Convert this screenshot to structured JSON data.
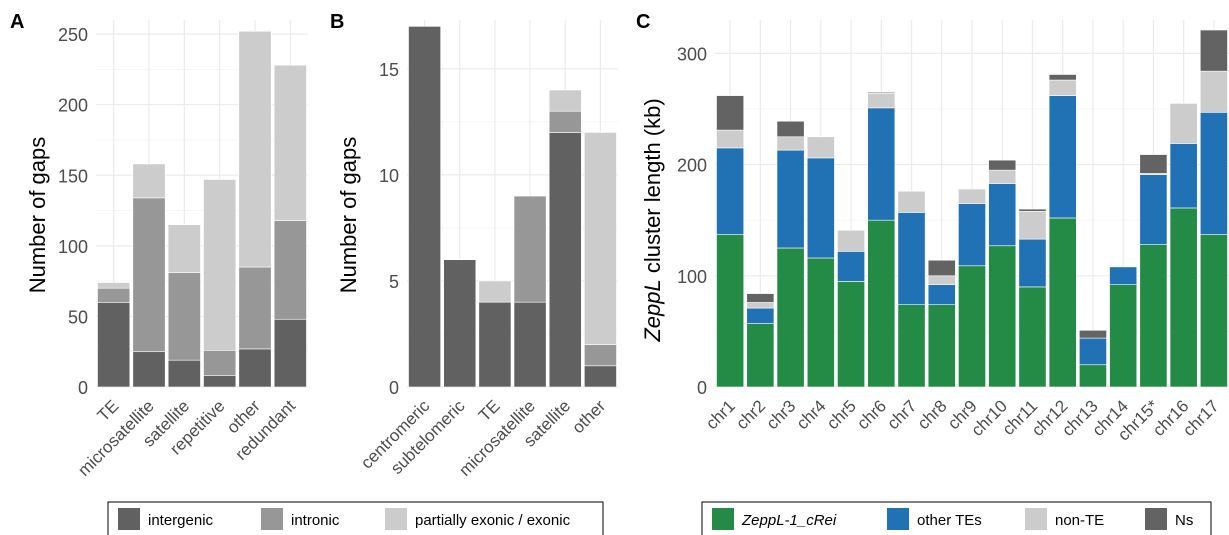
{
  "chart_data": [
    {
      "type": "bar",
      "panel_label": "A",
      "stacked": true,
      "ylabel": "Number of gaps",
      "xlabel": "",
      "ylim": [
        0,
        260
      ],
      "yticks": [
        0,
        50,
        100,
        150,
        200,
        250
      ],
      "categories": [
        "TE",
        "microsatellite",
        "satellite",
        "repetitive",
        "other",
        "redundant"
      ],
      "series": [
        {
          "name": "intergenic",
          "color": "#616161",
          "values": [
            60,
            25,
            19,
            8,
            27,
            48
          ]
        },
        {
          "name": "intronic",
          "color": "#979797",
          "values": [
            10,
            109,
            62,
            18,
            58,
            70
          ]
        },
        {
          "name": "partially exonic / exonic",
          "color": "#cccccc",
          "values": [
            4,
            24,
            34,
            121,
            167,
            110
          ]
        }
      ],
      "grid": true,
      "legend": "bottom"
    },
    {
      "type": "bar",
      "panel_label": "B",
      "stacked": true,
      "ylabel": "Number of gaps",
      "xlabel": "",
      "ylim": [
        0,
        17.3
      ],
      "yticks": [
        0,
        5,
        10,
        15
      ],
      "categories": [
        "centromeric",
        "subtelomeric",
        "TE",
        "microsatellite",
        "satellite",
        "other"
      ],
      "series": [
        {
          "name": "intergenic",
          "color": "#616161",
          "values": [
            17,
            6,
            4,
            4,
            12,
            1
          ]
        },
        {
          "name": "intronic",
          "color": "#979797",
          "values": [
            0,
            0,
            0,
            5,
            1,
            1
          ]
        },
        {
          "name": "partially exonic / exonic",
          "color": "#cccccc",
          "values": [
            0,
            0,
            1,
            0,
            1,
            10
          ]
        }
      ],
      "grid": true,
      "legend": "bottom"
    },
    {
      "type": "bar",
      "panel_label": "C",
      "stacked": true,
      "ylabel_italic": "ZeppL",
      "ylabel_rest": " cluster length (kb)",
      "xlabel": "",
      "ylim": [
        0,
        330
      ],
      "yticks": [
        0,
        100,
        200,
        300
      ],
      "categories": [
        "chr1",
        "chr2",
        "chr3",
        "chr4",
        "chr5",
        "chr6",
        "chr7",
        "chr8",
        "chr9",
        "chr10",
        "chr11",
        "chr12",
        "chr13",
        "chr14",
        "chr15*",
        "chr16",
        "chr17"
      ],
      "series": [
        {
          "name": "ZeppL-1_cRei",
          "italic": true,
          "color": "#238b45",
          "values": [
            137,
            57,
            125,
            116,
            95,
            150,
            74,
            74,
            109,
            127,
            90,
            152,
            20,
            92,
            128,
            161,
            137
          ]
        },
        {
          "name": "other TEs",
          "italic": false,
          "color": "#2171b5",
          "values": [
            78,
            14,
            88,
            90,
            27,
            101,
            83,
            18,
            56,
            56,
            43,
            110,
            24,
            16,
            63,
            58,
            110
          ]
        },
        {
          "name": "non-TE",
          "italic": false,
          "color": "#cccccc",
          "values": [
            16,
            5,
            12,
            19,
            19,
            13,
            19,
            8,
            13,
            12,
            25,
            14,
            0,
            0,
            1,
            36,
            37
          ]
        },
        {
          "name": "Ns",
          "italic": false,
          "color": "#636363",
          "values": [
            31,
            8,
            14,
            0,
            0,
            1,
            0,
            14,
            0,
            9,
            2,
            5,
            7,
            0,
            17,
            0,
            37
          ]
        }
      ],
      "grid": true,
      "legend": "bottom"
    }
  ]
}
